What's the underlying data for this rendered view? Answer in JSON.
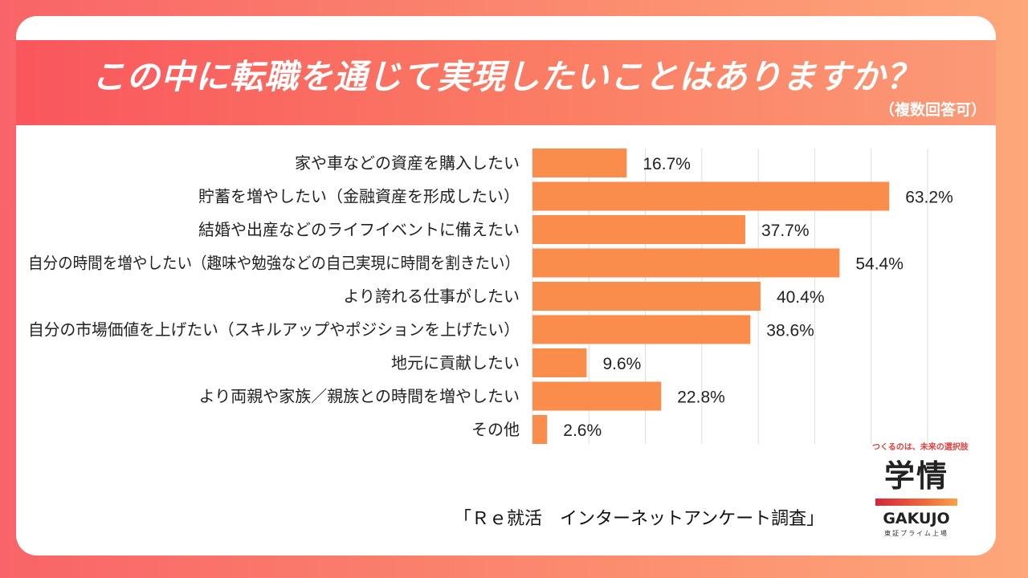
{
  "header": {
    "title": "この中に転職を通じて実現したいことはありますか？",
    "note": "（複数回答可）"
  },
  "chart_data": {
    "type": "bar",
    "orientation": "horizontal",
    "title": "この中に転職を通じて実現したいことはありますか？",
    "subtitle": "（複数回答可）",
    "unit": "%",
    "xlim": [
      0,
      70
    ],
    "grid": true,
    "color": "#fb8d4c",
    "categories": [
      "家や車などの資産を購入したい",
      "貯蓄を増やしたい（金融資産を形成したい）",
      "結婚や出産などのライフイベントに備えたい",
      "自分の時間を増やしたい（趣味や勉強などの自己実現に時間を割きたい）",
      "より誇れる仕事がしたい",
      "自分の市場価値を上げたい（スキルアップやポジションを上げたい）",
      "地元に貢献したい",
      "より両親や家族／親族との時間を増やしたい",
      "その他"
    ],
    "values": [
      16.7,
      63.2,
      37.7,
      54.4,
      40.4,
      38.6,
      9.6,
      22.8,
      2.6
    ],
    "value_labels": [
      "16.7%",
      "63.2%",
      "37.7%",
      "54.4%",
      "40.4%",
      "38.6%",
      "9.6%",
      "22.8%",
      "2.6%"
    ]
  },
  "source": "「Ｒｅ就活　インターネットアンケート調査」",
  "logo": {
    "tagline": "つくるのは、未来の選択肢",
    "name": "学情",
    "roman": "GAKUJO",
    "listing": "東証プライム上場"
  }
}
